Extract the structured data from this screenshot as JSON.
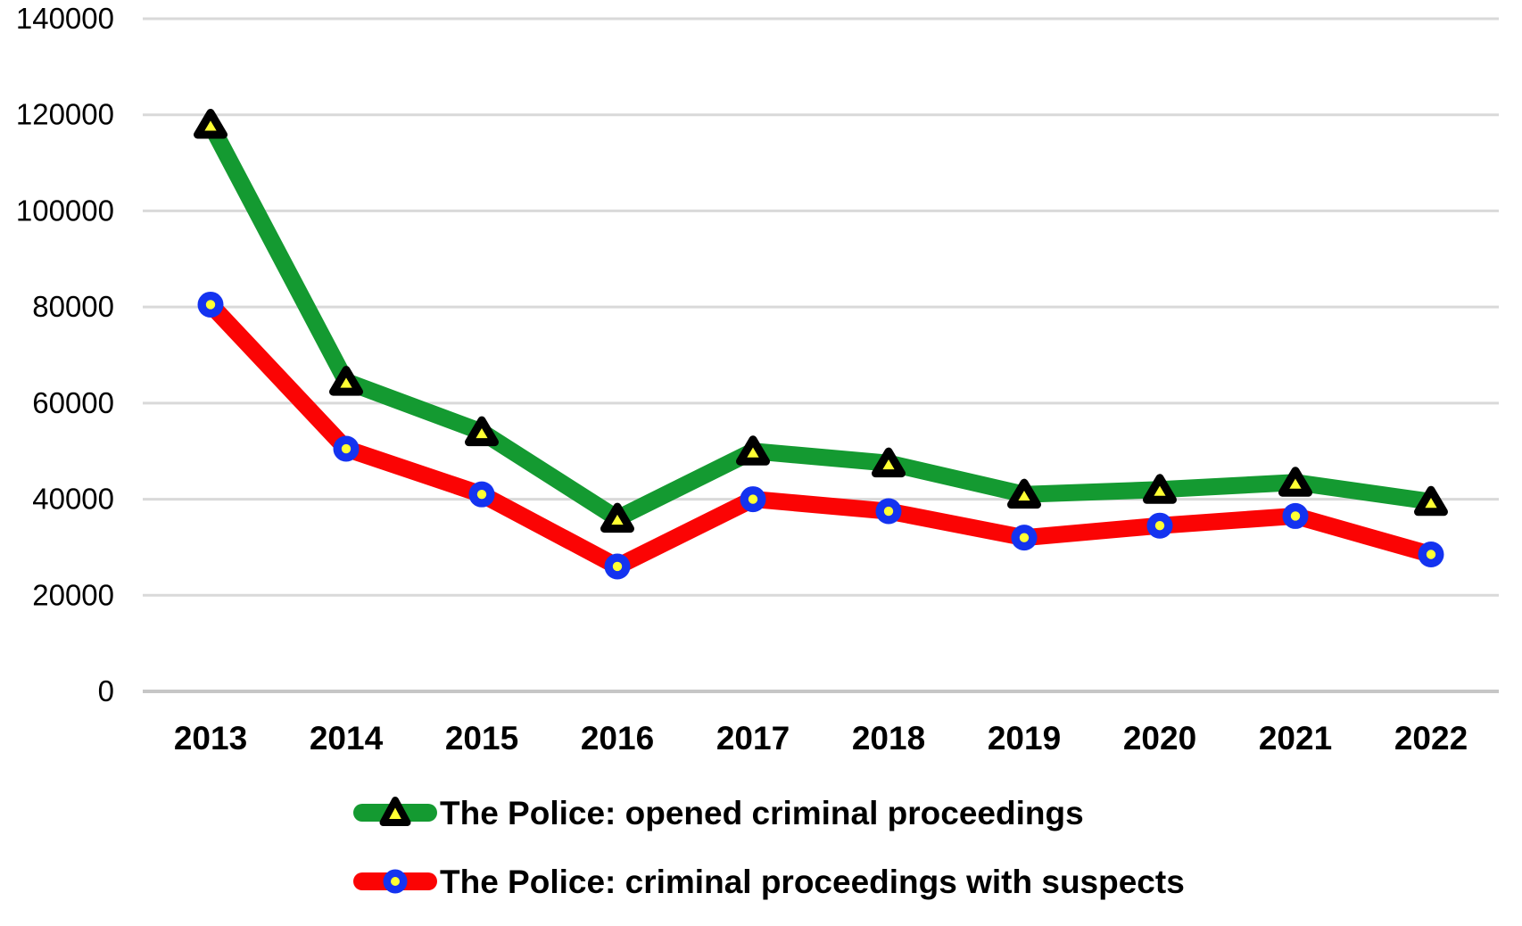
{
  "chart_data": {
    "type": "line",
    "categories": [
      "2013",
      "2014",
      "2015",
      "2016",
      "2017",
      "2018",
      "2019",
      "2020",
      "2021",
      "2022"
    ],
    "series": [
      {
        "name": "The Police: opened criminal proceedings",
        "line_color": "#149A31",
        "marker": "triangle",
        "marker_fill": "#FFFF33",
        "marker_stroke": "#000000",
        "values": [
          118000,
          64500,
          54000,
          36000,
          50000,
          47500,
          41000,
          42000,
          43500,
          39500
        ]
      },
      {
        "name": "The Police: criminal proceedings with suspects",
        "line_color": "#FB0404",
        "marker": "circle",
        "marker_fill": "#1433F0",
        "marker_dot": "#FFFF33",
        "values": [
          80500,
          50500,
          41000,
          26000,
          40000,
          37500,
          32000,
          34500,
          36500,
          28500
        ]
      }
    ],
    "ylim": [
      0,
      140000
    ],
    "ytick_step": 20000,
    "yticks": [
      "0",
      "20000",
      "40000",
      "60000",
      "80000",
      "100000",
      "120000",
      "140000"
    ],
    "grid": true,
    "gridline_color": "#D9D9D9",
    "zero_line_color": "#C6C6C6",
    "axis_text_color": "#000000",
    "background_color": "#FFFFFF",
    "legend_position": "bottom-left"
  }
}
